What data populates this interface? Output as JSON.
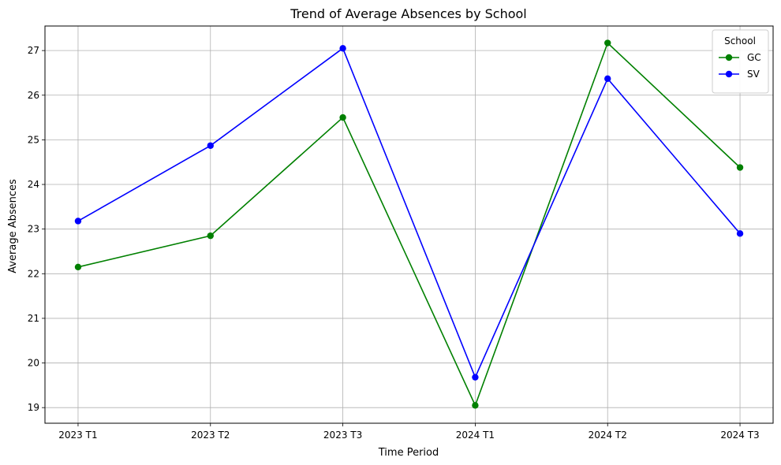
{
  "chart_data": {
    "type": "line",
    "title": "Trend of Average Absences by School",
    "xlabel": "Time Period",
    "ylabel": "Average Absences",
    "categories": [
      "2023 T1",
      "2023 T2",
      "2023 T3",
      "2024 T1",
      "2024 T2",
      "2024 T3"
    ],
    "ylim": [
      18.65,
      27.55
    ],
    "yticks": [
      19,
      20,
      21,
      22,
      23,
      24,
      25,
      26,
      27
    ],
    "grid": true,
    "legend": {
      "title": "School",
      "placement": "top-right"
    },
    "series": [
      {
        "name": "GC",
        "color": "#008000",
        "values": [
          22.15,
          22.85,
          25.5,
          19.05,
          27.17,
          24.38
        ]
      },
      {
        "name": "SV",
        "color": "#0000ff",
        "values": [
          23.18,
          24.87,
          27.05,
          19.68,
          26.37,
          22.9
        ]
      }
    ]
  }
}
